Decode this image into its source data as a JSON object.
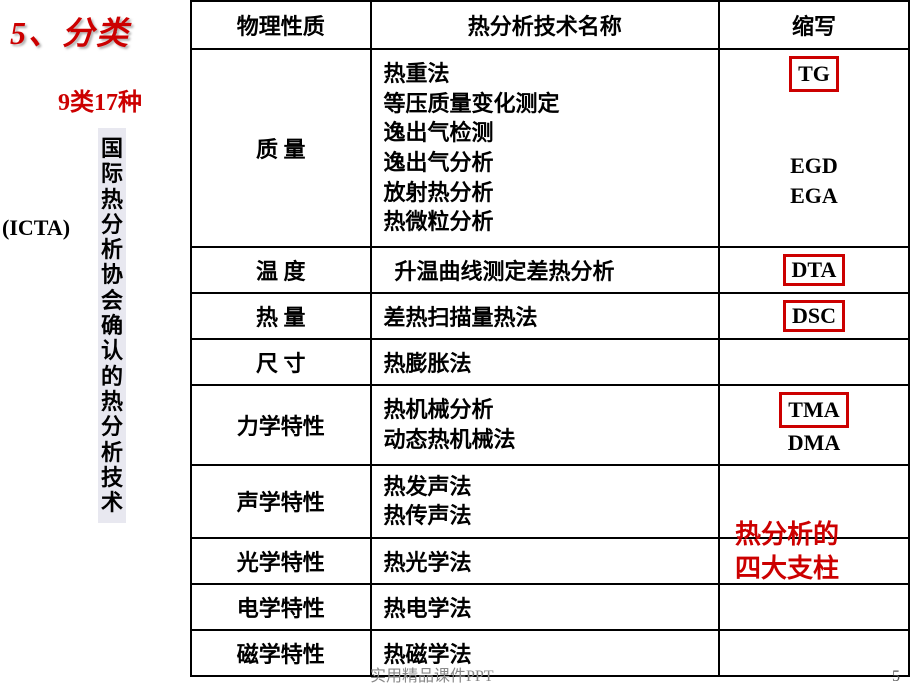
{
  "title": "5、分类",
  "subtitle": "9类17种",
  "vertical_text": "国际热分析协会确认的热分析技术",
  "icta": "(ICTA)",
  "headers": {
    "col1": "物理性质",
    "col2": "热分析技术名称",
    "col3": "缩写"
  },
  "rows": [
    {
      "property": "质    量",
      "techniques": [
        "热重法",
        "等压质量变化测定",
        "逸出气检测",
        "逸出气分析",
        "放射热分析",
        "热微粒分析"
      ],
      "abbr1_boxed": "TG",
      "abbr_plain1": "EGD",
      "abbr_plain2": "EGA"
    },
    {
      "property": "温    度",
      "techniques_text": "  升温曲线测定差热分析",
      "abbr_boxed": "DTA"
    },
    {
      "property": "热    量",
      "techniques_text": "差热扫描量热法",
      "abbr_boxed": "DSC"
    },
    {
      "property": "尺    寸",
      "techniques_text": "热膨胀法",
      "abbr": ""
    },
    {
      "property": "力学特性",
      "tech1": "热机械分析",
      "tech2": "动态热机械法",
      "abbr_boxed": "TMA",
      "abbr_plain": "DMA"
    },
    {
      "property": "声学特性",
      "tech1": "热发声法",
      "tech2": "热传声法",
      "abbr": ""
    },
    {
      "property": "光学特性",
      "techniques_text": "热光学法",
      "abbr": ""
    },
    {
      "property": "电学特性",
      "techniques_text": "热电学法",
      "abbr": ""
    },
    {
      "property": "磁学特性",
      "techniques_text": "热磁学法",
      "abbr": ""
    }
  ],
  "annotation": {
    "line1": "热分析的",
    "line2": "四大支柱"
  },
  "footer": "实用精品课件PPT",
  "page_num": "5",
  "colors": {
    "red": "#cc0000",
    "box_bg": "#e8e8f0",
    "border": "#000000"
  }
}
